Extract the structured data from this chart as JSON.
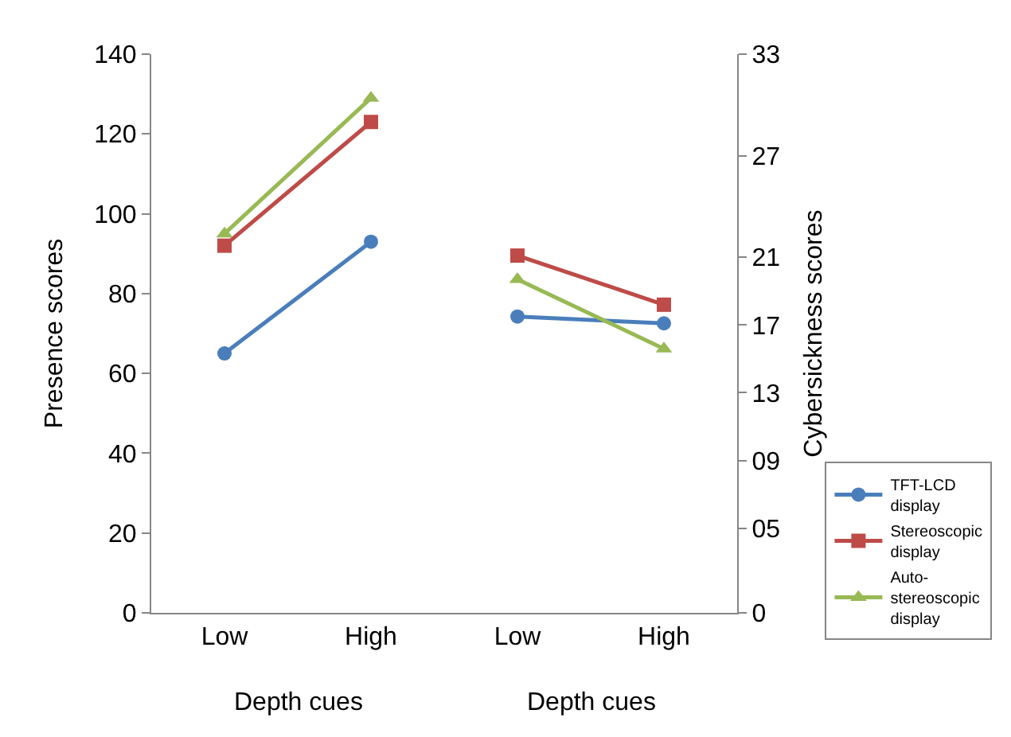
{
  "chart_data": {
    "type": "line",
    "ylabel": "Presence scores",
    "y2label": "Cybersickness scores",
    "categories": [
      "Low",
      "High",
      "Low",
      "High"
    ],
    "annotations": [
      "Depth cues",
      "Depth cues"
    ],
    "series": [
      {
        "name": "TFT-LCD display",
        "color": "#4a7ebb",
        "marker": "circle",
        "values": [
          65,
          93,
          null,
          null
        ]
      },
      {
        "name": "Stereoscopic display",
        "color": "#be4b48",
        "marker": "square",
        "values": [
          92,
          123,
          null,
          null
        ]
      },
      {
        "name": "Auto-stereoscopic display",
        "color": "#98b954",
        "marker": "triangle",
        "values": [
          95,
          129,
          null,
          null
        ]
      },
      {
        "color": "#4a7ebb",
        "marker": "circle",
        "axis": "y2",
        "values": [
          null,
          null,
          17.5,
          17.1
        ]
      },
      {
        "color": "#be4b48",
        "marker": "square",
        "axis": "y2",
        "values": [
          null,
          null,
          21.1,
          18.2
        ]
      },
      {
        "color": "#98b954",
        "marker": "triangle",
        "axis": "y2",
        "values": [
          null,
          null,
          19.7,
          15.6
        ]
      }
    ],
    "ylim": [
      0,
      140
    ],
    "yticks": [
      0,
      20,
      40,
      60,
      80,
      100,
      120,
      140
    ],
    "y2lim": [
      0,
      33
    ],
    "y2ticks": [
      0,
      {
        "value": 5,
        "label": "05"
      },
      {
        "value": 9,
        "label": "09"
      },
      13,
      17,
      21,
      27,
      33
    ],
    "legend": "bottom right"
  }
}
